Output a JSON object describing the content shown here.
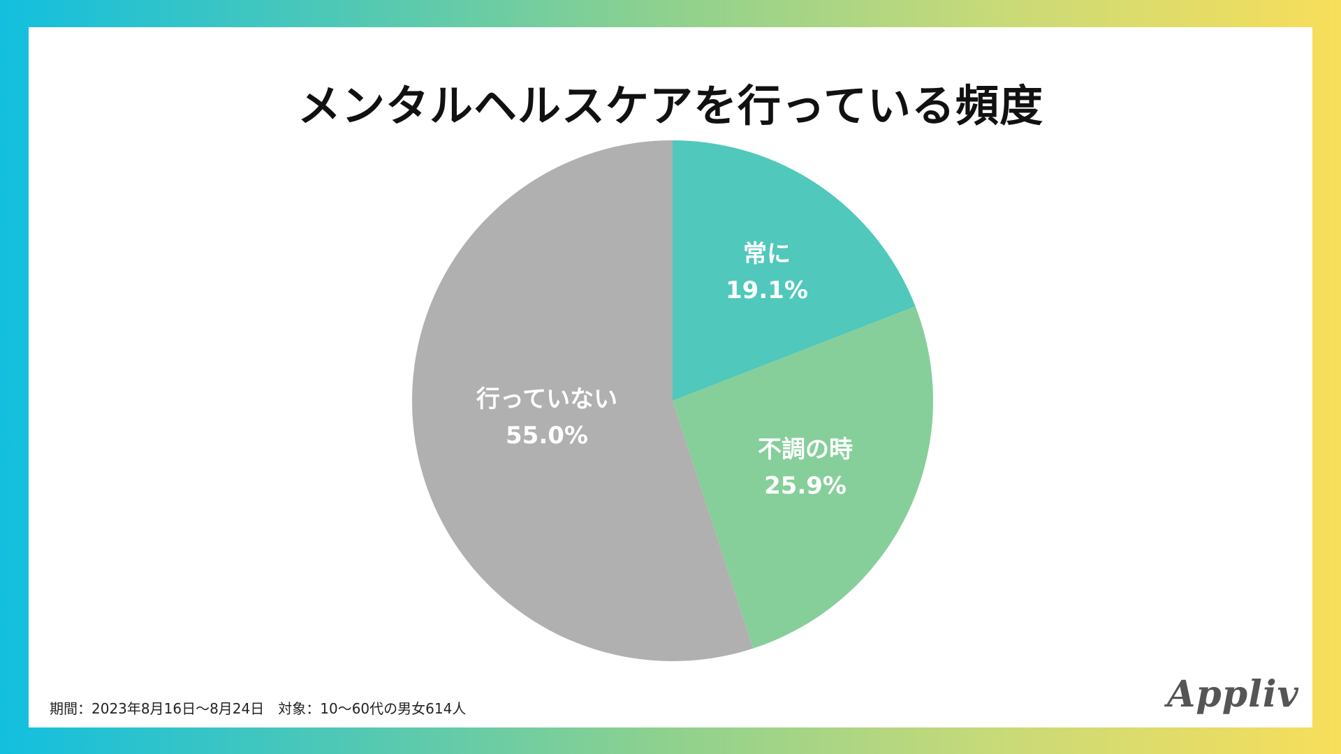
{
  "title": "メンタルヘルスケアを行っている頻度",
  "footer": "期間：2023年8月16日〜8月24日　対象：10〜60代の男女614人",
  "logo": "Appliv",
  "chart_data": {
    "type": "pie",
    "title": "メンタルヘルスケアを行っている頻度",
    "slices": [
      {
        "label": "常に",
        "value": 19.1,
        "value_label": "19.1%",
        "color": "#50c8bb"
      },
      {
        "label": "不調の時",
        "value": 25.9,
        "value_label": "25.9%",
        "color": "#86cf9a"
      },
      {
        "label": "行っていない",
        "value": 55.0,
        "value_label": "55.0%",
        "color": "#b0b0b0"
      }
    ],
    "start_angle": "12 o'clock",
    "direction": "clockwise",
    "legend": "none"
  }
}
